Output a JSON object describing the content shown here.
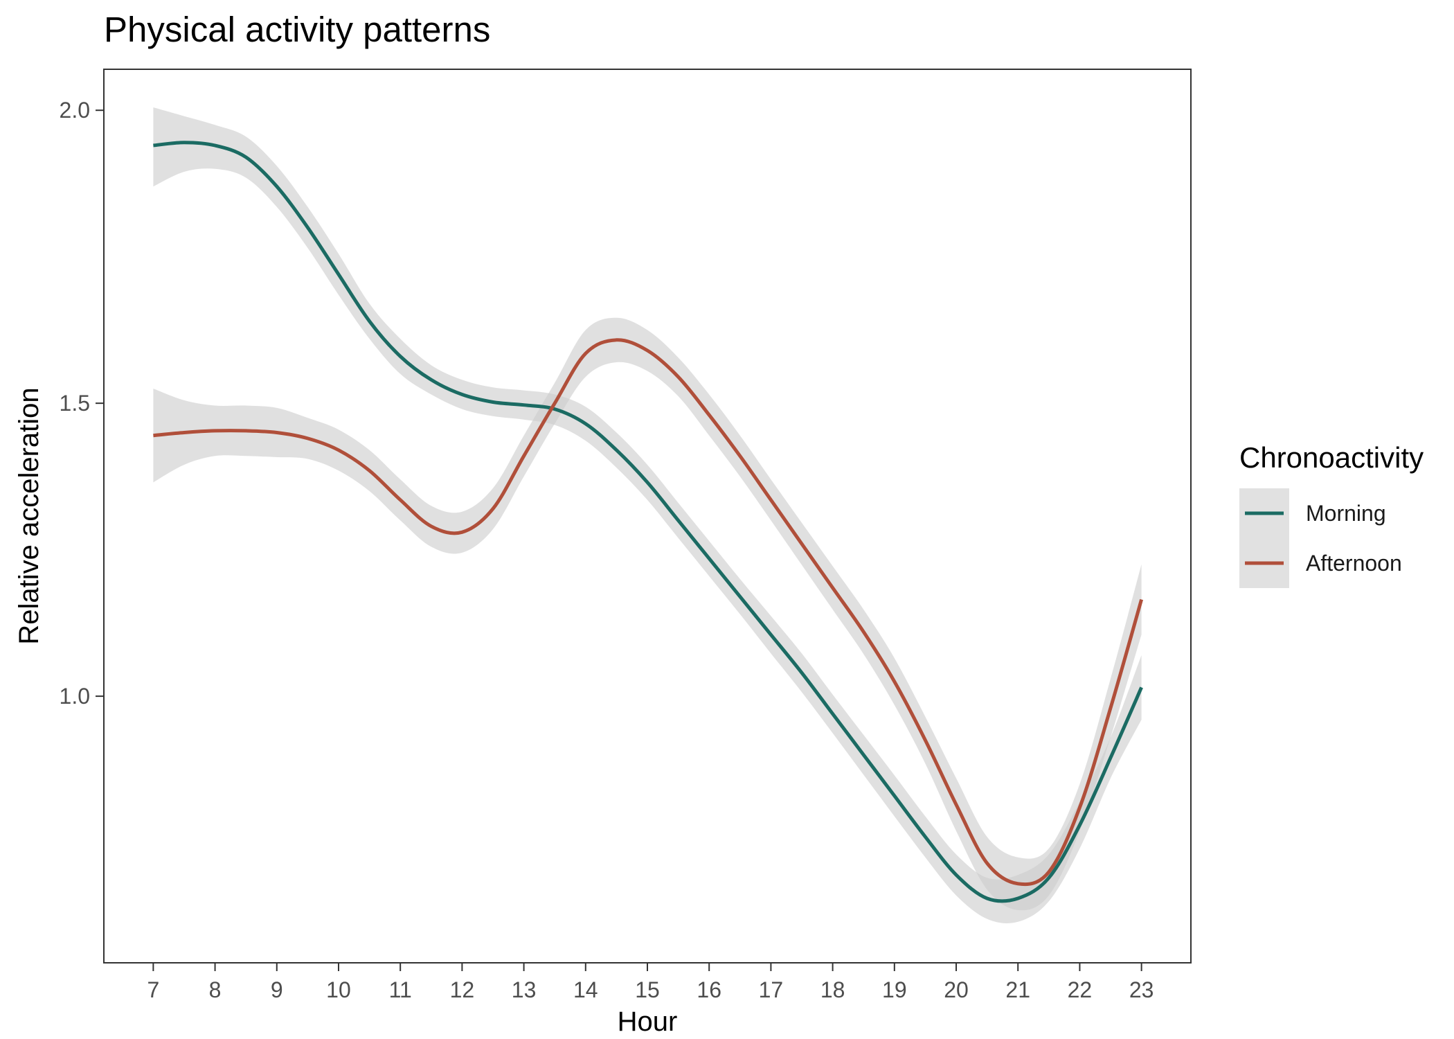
{
  "chart_data": {
    "type": "line",
    "title": "Physical activity patterns",
    "xlabel": "Hour",
    "ylabel": "Relative acceleration",
    "xlim": [
      6.2,
      23.8
    ],
    "ylim": [
      0.545,
      2.07
    ],
    "x_ticks": [
      7,
      8,
      9,
      10,
      11,
      12,
      13,
      14,
      15,
      16,
      17,
      18,
      19,
      20,
      21,
      22,
      23
    ],
    "y_ticks": [
      1.0,
      1.5,
      2.0
    ],
    "y_tick_labels": [
      "1.0",
      "1.5",
      "2.0"
    ],
    "grid": false,
    "legend": {
      "title": "Chronoactivity",
      "position": "right"
    },
    "series": [
      {
        "name": "Morning",
        "color": "#1b6b63",
        "x": [
          7,
          7.5,
          8,
          8.5,
          9,
          9.5,
          10,
          10.5,
          11,
          11.5,
          12,
          12.5,
          13,
          13.5,
          14,
          14.5,
          15,
          15.5,
          16,
          16.5,
          17,
          17.5,
          18,
          18.5,
          19,
          19.5,
          20,
          20.5,
          21,
          21.5,
          22,
          22.5,
          23
        ],
        "y": [
          1.94,
          1.945,
          1.94,
          1.92,
          1.87,
          1.8,
          1.72,
          1.64,
          1.58,
          1.54,
          1.515,
          1.502,
          1.497,
          1.49,
          1.465,
          1.42,
          1.365,
          1.3,
          1.235,
          1.17,
          1.105,
          1.04,
          0.97,
          0.9,
          0.83,
          0.76,
          0.695,
          0.655,
          0.655,
          0.69,
          0.78,
          0.895,
          1.015
        ],
        "ci_lower": [
          1.87,
          1.895,
          1.9,
          1.885,
          1.835,
          1.765,
          1.685,
          1.61,
          1.55,
          1.515,
          1.49,
          1.478,
          1.472,
          1.463,
          1.436,
          1.39,
          1.335,
          1.27,
          1.205,
          1.14,
          1.073,
          1.007,
          0.937,
          0.866,
          0.795,
          0.725,
          0.66,
          0.62,
          0.615,
          0.65,
          0.74,
          0.86,
          0.96
        ],
        "ci_upper": [
          2.005,
          1.99,
          1.975,
          1.955,
          1.905,
          1.835,
          1.755,
          1.67,
          1.61,
          1.565,
          1.54,
          1.527,
          1.522,
          1.515,
          1.494,
          1.45,
          1.395,
          1.33,
          1.265,
          1.2,
          1.137,
          1.073,
          1.003,
          0.934,
          0.865,
          0.795,
          0.73,
          0.69,
          0.695,
          0.73,
          0.82,
          0.93,
          1.07
        ]
      },
      {
        "name": "Afternoon",
        "color": "#b04f3a",
        "x": [
          7,
          7.5,
          8,
          8.5,
          9,
          9.5,
          10,
          10.5,
          11,
          11.5,
          12,
          12.5,
          13,
          13.5,
          14,
          14.5,
          15,
          15.5,
          16,
          16.5,
          17,
          17.5,
          18,
          18.5,
          19,
          19.5,
          20,
          20.5,
          21,
          21.5,
          22,
          22.5,
          23
        ],
        "y": [
          1.445,
          1.45,
          1.453,
          1.453,
          1.45,
          1.44,
          1.42,
          1.385,
          1.335,
          1.29,
          1.28,
          1.32,
          1.41,
          1.5,
          1.585,
          1.608,
          1.59,
          1.545,
          1.48,
          1.41,
          1.335,
          1.26,
          1.185,
          1.11,
          1.025,
          0.925,
          0.815,
          0.715,
          0.68,
          0.7,
          0.81,
          0.98,
          1.165
        ],
        "ci_lower": [
          1.365,
          1.395,
          1.41,
          1.41,
          1.408,
          1.405,
          1.385,
          1.35,
          1.3,
          1.255,
          1.245,
          1.285,
          1.375,
          1.465,
          1.545,
          1.57,
          1.555,
          1.512,
          1.445,
          1.375,
          1.3,
          1.224,
          1.148,
          1.072,
          0.985,
          0.885,
          0.77,
          0.67,
          0.635,
          0.66,
          0.77,
          0.93,
          1.105
        ],
        "ci_upper": [
          1.525,
          1.505,
          1.496,
          1.496,
          1.492,
          1.475,
          1.455,
          1.42,
          1.37,
          1.325,
          1.315,
          1.355,
          1.445,
          1.535,
          1.625,
          1.646,
          1.625,
          1.578,
          1.515,
          1.445,
          1.37,
          1.296,
          1.222,
          1.148,
          1.065,
          0.965,
          0.86,
          0.76,
          0.725,
          0.74,
          0.85,
          1.03,
          1.225
        ]
      }
    ]
  }
}
